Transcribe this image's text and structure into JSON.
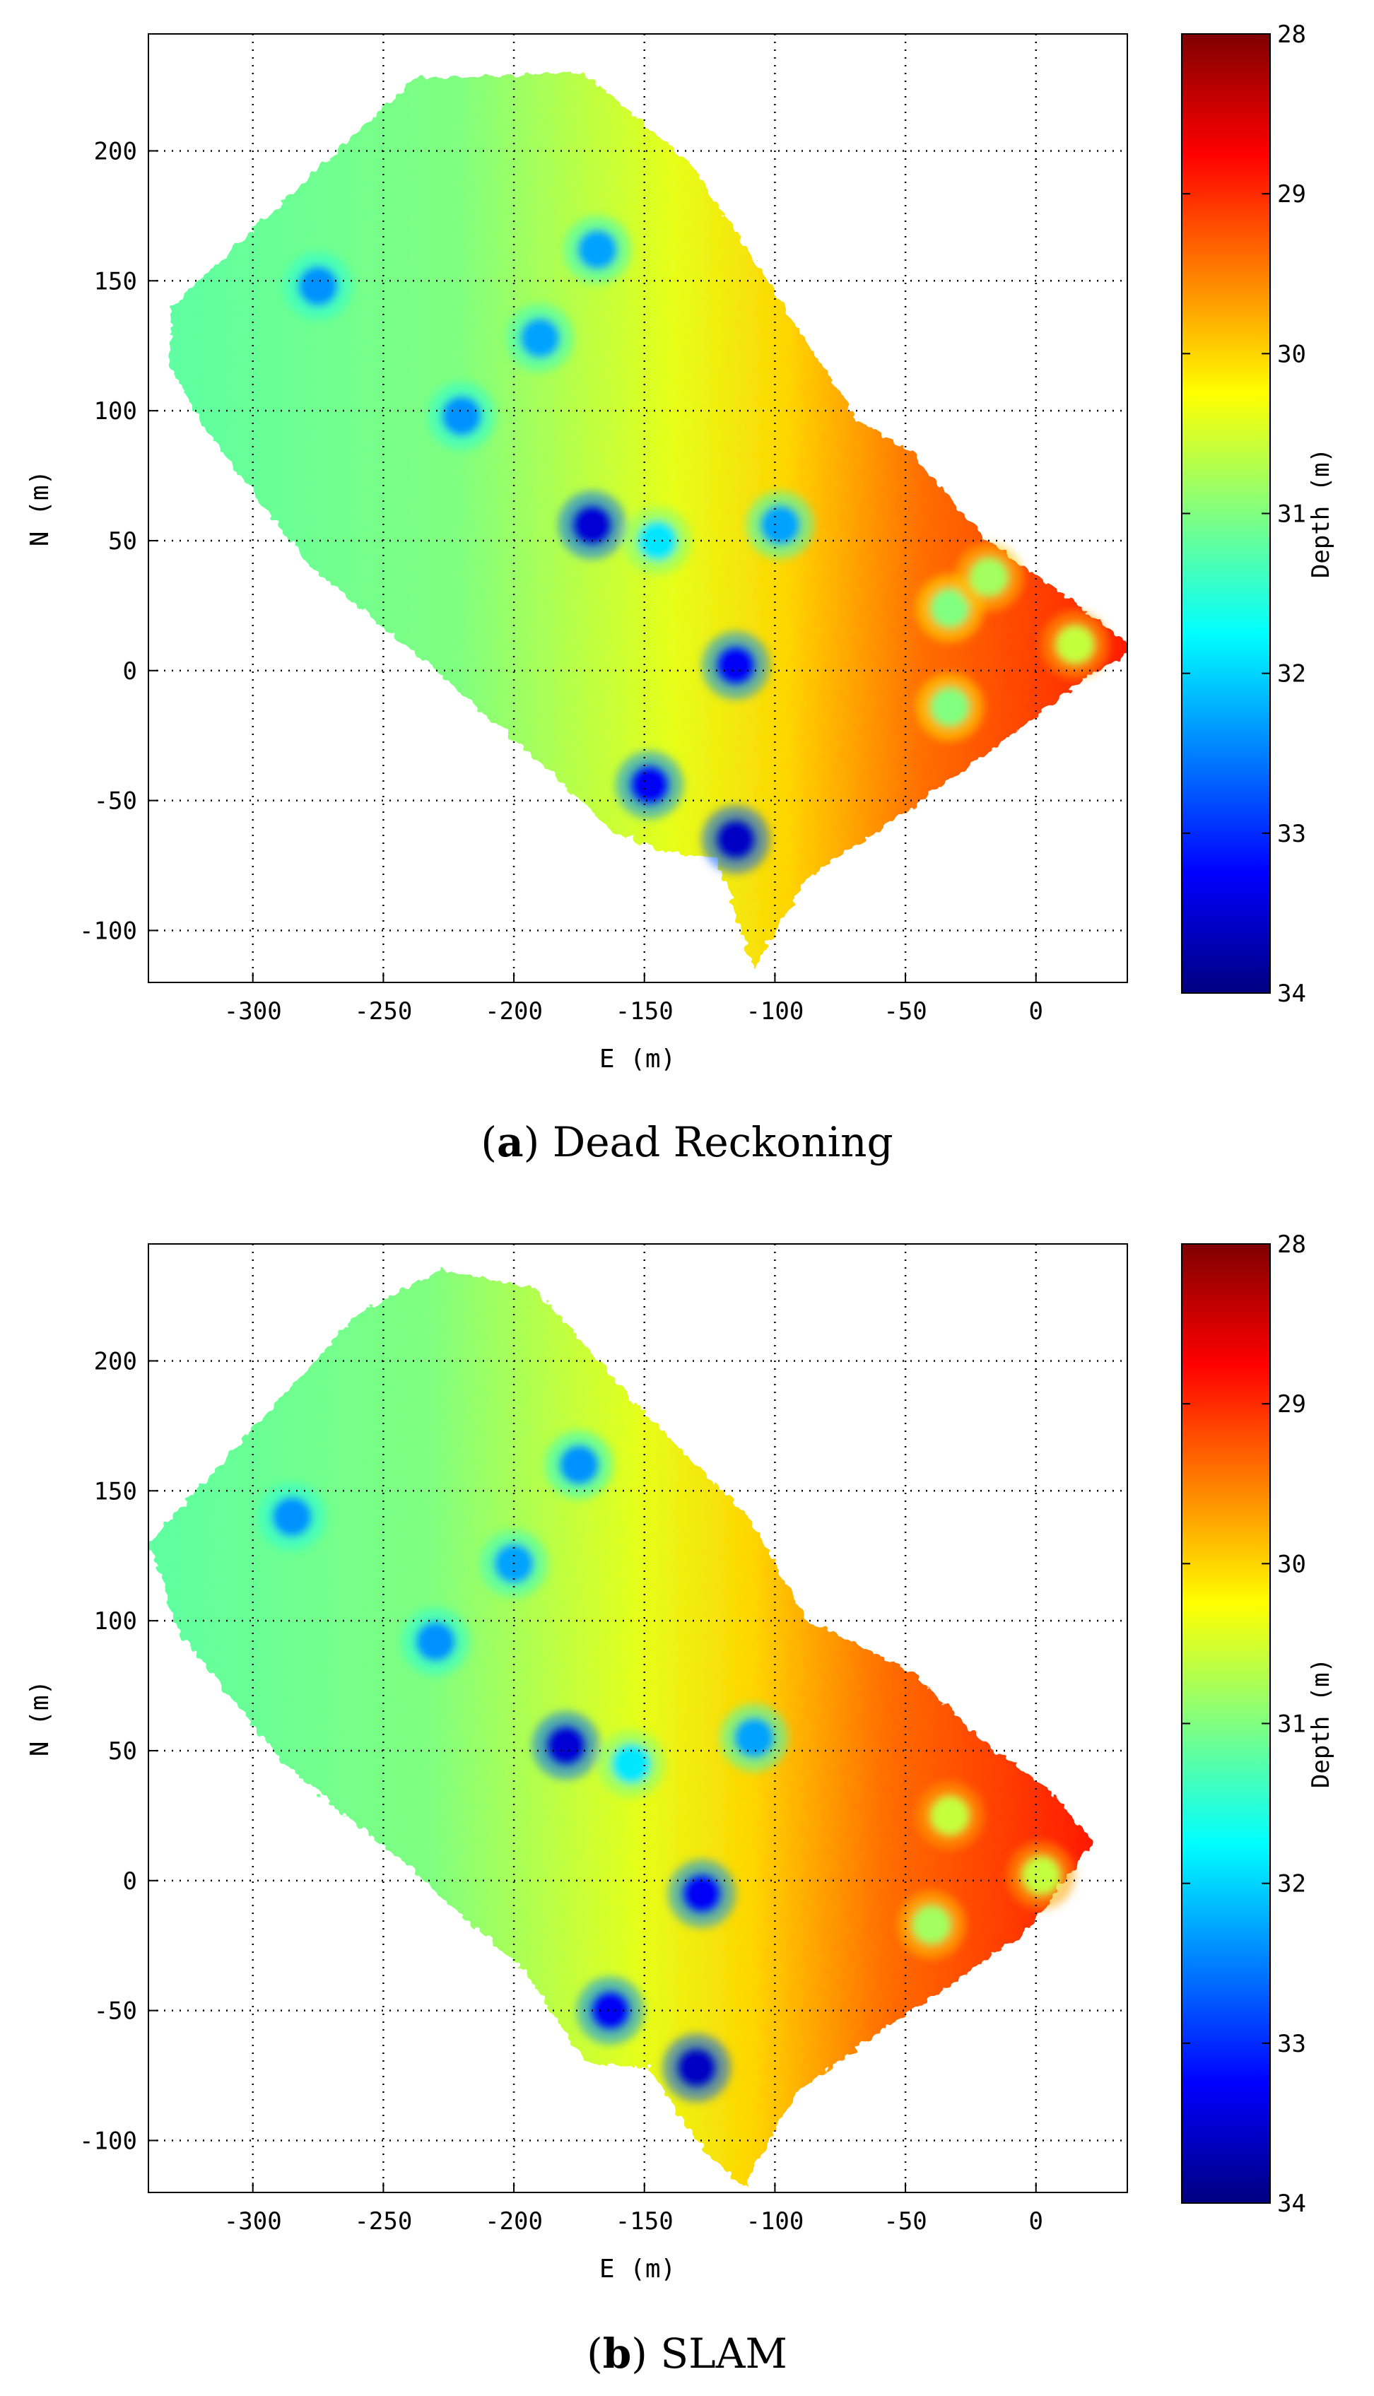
{
  "chart_data": [
    {
      "type": "heatmap",
      "caption_letter": "a",
      "caption_text": "Dead Reckoning",
      "xlabel": "E (m)",
      "ylabel": "N (m)",
      "xlim": [
        -340,
        35
      ],
      "ylim": [
        -120,
        245
      ],
      "xticks": [
        -300,
        -250,
        -200,
        -150,
        -100,
        -50,
        0
      ],
      "yticks": [
        -100,
        -50,
        0,
        50,
        100,
        150,
        200
      ],
      "grid": true,
      "grid_style": "dotted",
      "colorbar": {
        "label": "Depth (m)",
        "ticks": [
          28,
          29,
          30,
          31,
          32,
          33,
          34
        ],
        "range": [
          28,
          34
        ],
        "colormap": "jet",
        "reversed": true
      },
      "survey_outline": [
        [
          -331,
          140
        ],
        [
          -238,
          228
        ],
        [
          -173,
          230
        ],
        [
          -132,
          195
        ],
        [
          -108,
          158
        ],
        [
          -68,
          96
        ],
        [
          -50,
          86
        ],
        [
          -20,
          51
        ],
        [
          15,
          26
        ],
        [
          38,
          8
        ],
        [
          15,
          -5
        ],
        [
          -5,
          -22
        ],
        [
          -58,
          -60
        ],
        [
          -88,
          -80
        ],
        [
          -108,
          -115
        ],
        [
          -122,
          -72
        ],
        [
          -142,
          -70
        ],
        [
          -162,
          -62
        ],
        [
          -185,
          -40
        ],
        [
          -230,
          0
        ],
        [
          -278,
          40
        ],
        [
          -318,
          92
        ],
        [
          -332,
          118
        ]
      ],
      "targets": [
        {
          "e": -275,
          "n": 148,
          "depth": 32.4
        },
        {
          "e": -168,
          "n": 162,
          "depth": 32.3
        },
        {
          "e": -190,
          "n": 128,
          "depth": 32.3
        },
        {
          "e": -220,
          "n": 98,
          "depth": 32.4
        },
        {
          "e": -170,
          "n": 56,
          "depth": 33.5
        },
        {
          "e": -145,
          "n": 50,
          "depth": 31.9
        },
        {
          "e": -98,
          "n": 56,
          "depth": 32.3
        },
        {
          "e": -115,
          "n": 2,
          "depth": 33.3
        },
        {
          "e": -148,
          "n": -44,
          "depth": 33.3
        },
        {
          "e": -115,
          "n": -65,
          "depth": 33.6
        },
        {
          "e": -33,
          "n": 24,
          "depth": 31.0
        },
        {
          "e": -18,
          "n": 36,
          "depth": 30.8
        },
        {
          "e": -33,
          "n": -14,
          "depth": 31.0
        },
        {
          "e": 15,
          "n": 10,
          "depth": 30.6
        }
      ]
    },
    {
      "type": "heatmap",
      "caption_letter": "b",
      "caption_text": "SLAM",
      "xlabel": "E (m)",
      "ylabel": "N (m)",
      "xlim": [
        -340,
        35
      ],
      "ylim": [
        -120,
        245
      ],
      "xticks": [
        -300,
        -250,
        -200,
        -150,
        -100,
        -50,
        0
      ],
      "yticks": [
        -100,
        -50,
        0,
        50,
        100,
        150,
        200
      ],
      "grid": true,
      "grid_style": "dotted",
      "colorbar": {
        "label": "Depth (m)",
        "ticks": [
          28,
          29,
          30,
          31,
          32,
          33,
          34
        ],
        "range": [
          28,
          34
        ],
        "colormap": "jet",
        "reversed": true
      },
      "survey_outline": [
        [
          -340,
          130
        ],
        [
          -260,
          218
        ],
        [
          -228,
          235
        ],
        [
          -192,
          228
        ],
        [
          -150,
          180
        ],
        [
          -110,
          140
        ],
        [
          -88,
          100
        ],
        [
          -70,
          92
        ],
        [
          -45,
          78
        ],
        [
          -22,
          55
        ],
        [
          5,
          35
        ],
        [
          22,
          15
        ],
        [
          -2,
          -18
        ],
        [
          -30,
          -38
        ],
        [
          -65,
          -62
        ],
        [
          -92,
          -82
        ],
        [
          -112,
          -118
        ],
        [
          -130,
          -100
        ],
        [
          -148,
          -72
        ],
        [
          -172,
          -70
        ],
        [
          -196,
          -35
        ],
        [
          -240,
          5
        ],
        [
          -288,
          45
        ],
        [
          -328,
          95
        ]
      ],
      "targets": [
        {
          "e": -285,
          "n": 140,
          "depth": 32.4
        },
        {
          "e": -175,
          "n": 160,
          "depth": 32.4
        },
        {
          "e": -200,
          "n": 122,
          "depth": 32.3
        },
        {
          "e": -230,
          "n": 92,
          "depth": 32.4
        },
        {
          "e": -180,
          "n": 52,
          "depth": 33.5
        },
        {
          "e": -155,
          "n": 45,
          "depth": 31.9
        },
        {
          "e": -108,
          "n": 55,
          "depth": 32.3
        },
        {
          "e": -128,
          "n": -5,
          "depth": 33.3
        },
        {
          "e": -163,
          "n": -50,
          "depth": 33.3
        },
        {
          "e": -130,
          "n": -72,
          "depth": 33.6
        },
        {
          "e": -33,
          "n": 25,
          "depth": 30.6
        },
        {
          "e": -40,
          "n": -17,
          "depth": 30.8
        },
        {
          "e": 2,
          "n": 2,
          "depth": 30.6
        }
      ]
    }
  ]
}
